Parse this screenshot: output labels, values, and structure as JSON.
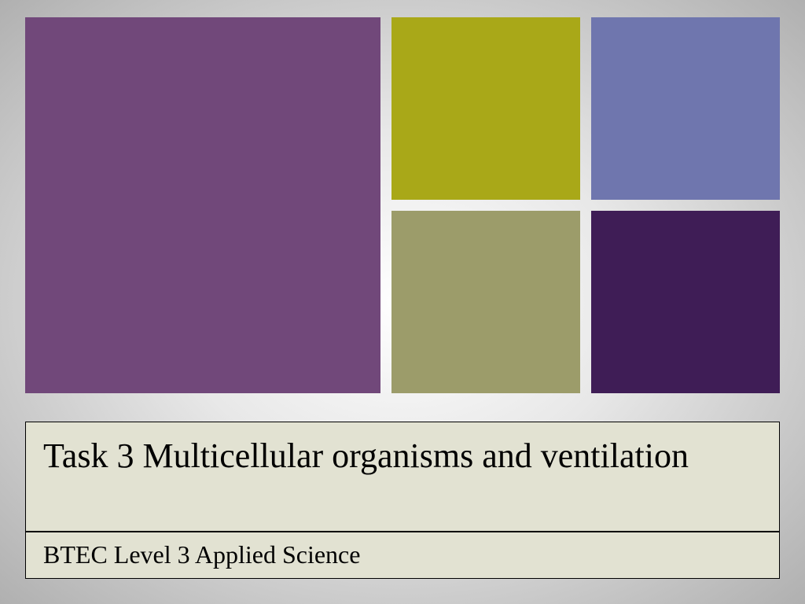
{
  "title": "Task 3 Multicellular organisms and ventilation",
  "subtitle": "BTEC Level 3 Applied Science",
  "colors": {
    "big": "#71487a",
    "top_left": "#a9a818",
    "top_right": "#6f76ae",
    "bot_left": "#9c9c6a",
    "bot_right": "#3f1d56",
    "textbox_bg": "#e2e2d2"
  },
  "typography": {
    "title_fontsize": 44,
    "subtitle_fontsize": 32,
    "font_family": "Georgia, serif"
  }
}
